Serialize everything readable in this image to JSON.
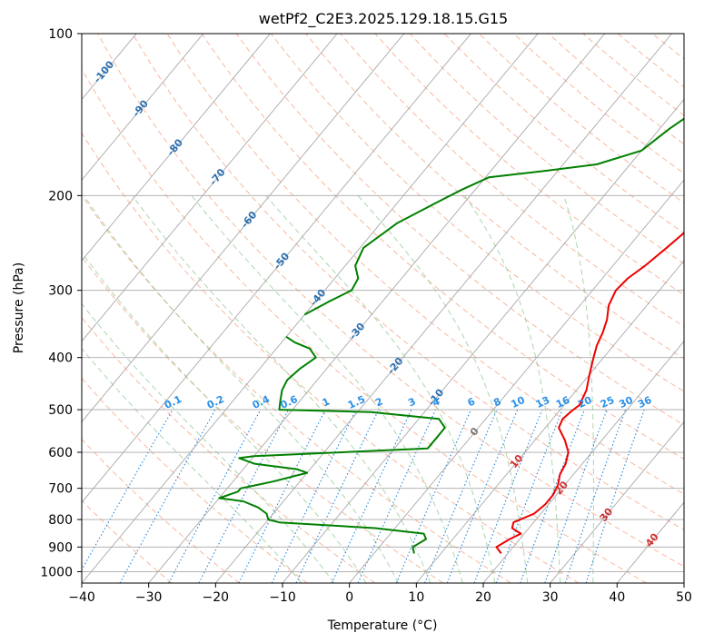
{
  "chart_data": {
    "type": "line",
    "subtype": "skew-t log-p",
    "title": "wetPf2_C2E3.2025.129.18.15.G15",
    "xlabel": "Temperature (°C)",
    "ylabel": "Pressure (hPa)",
    "xlim": [
      -40,
      50
    ],
    "ylim": [
      1050,
      100
    ],
    "y_scale": "log",
    "x_ticks": [
      "−40",
      "−30",
      "−20",
      "−10",
      "0",
      "10",
      "20",
      "30",
      "40",
      "50"
    ],
    "y_ticks": [
      "100",
      "200",
      "300",
      "400",
      "500",
      "600",
      "700",
      "800",
      "900",
      "1000"
    ],
    "grid": true,
    "colors": {
      "temperature": "#ee0000",
      "dewpoint": "#008000",
      "isotherms": "#a8a8a8",
      "dry_adiabats": "#f4a080",
      "moist_adiabats": "#90c890",
      "mixing_ratio": "#1f86e0",
      "labels_isotherm": "#2b6fb0",
      "labels_mixing": "#2a90e8",
      "labels_warm": "#d03030"
    },
    "isotherm_labels": [
      "-100",
      "-90",
      "-80",
      "-70",
      "-60",
      "-50",
      "-40",
      "-30",
      "-20",
      "-10",
      "0",
      "10",
      "20",
      "30",
      "40"
    ],
    "mixing_ratio_labels": [
      "0.1",
      "0.2",
      "0.4",
      "0.6",
      "1",
      "1.5",
      "2",
      "3",
      "4",
      "6",
      "8",
      "10",
      "13",
      "16",
      "20",
      "25",
      "30",
      "36"
    ],
    "series": [
      {
        "key": "temperature",
        "points": [
          [
            19.0,
            925
          ],
          [
            17.5,
            900
          ],
          [
            18.5,
            870
          ],
          [
            19.5,
            850
          ],
          [
            17.5,
            830
          ],
          [
            17.0,
            810
          ],
          [
            19.0,
            780
          ],
          [
            19.5,
            750
          ],
          [
            19.5,
            720
          ],
          [
            19.0,
            690
          ],
          [
            18.0,
            660
          ],
          [
            17.5,
            630
          ],
          [
            16.5,
            600
          ],
          [
            14.5,
            570
          ],
          [
            12.0,
            540
          ],
          [
            11.5,
            520
          ],
          [
            11.8,
            505
          ],
          [
            12.3,
            490
          ],
          [
            11.5,
            460
          ],
          [
            10.0,
            430
          ],
          [
            8.5,
            400
          ],
          [
            7.5,
            380
          ],
          [
            6.8,
            360
          ],
          [
            5.8,
            340
          ],
          [
            4.3,
            320
          ],
          [
            3.5,
            300
          ],
          [
            3.8,
            285
          ],
          [
            4.8,
            270
          ],
          [
            5.8,
            250
          ],
          [
            6.8,
            230
          ],
          [
            7.8,
            210
          ],
          [
            8.8,
            195
          ],
          [
            9.8,
            180
          ],
          [
            10.8,
            170
          ],
          [
            10.4,
            160
          ],
          [
            9.6,
            150
          ],
          [
            9.2,
            140
          ],
          [
            9.1,
            130
          ],
          [
            9.1,
            120
          ],
          [
            9.6,
            110
          ],
          [
            10.6,
            100
          ]
        ]
      },
      {
        "key": "dewpoint",
        "points": [
          [
            6.0,
            925
          ],
          [
            5.0,
            900
          ],
          [
            6.0,
            870
          ],
          [
            5.0,
            850
          ],
          [
            -3.0,
            830
          ],
          [
            -18.0,
            810
          ],
          [
            -20.0,
            800
          ],
          [
            -21.0,
            780
          ],
          [
            -23.0,
            760
          ],
          [
            -26.0,
            740
          ],
          [
            -30.0,
            730
          ],
          [
            -28.0,
            710
          ],
          [
            -28.0,
            700
          ],
          [
            -26.0,
            690
          ],
          [
            -24.0,
            680
          ],
          [
            -20.0,
            655
          ],
          [
            -22.0,
            645
          ],
          [
            -29.0,
            630
          ],
          [
            -32.0,
            615
          ],
          [
            -30.0,
            610
          ],
          [
            -5.0,
            590
          ],
          [
            -5.0,
            560
          ],
          [
            -5.0,
            540
          ],
          [
            -7.0,
            520
          ],
          [
            -18.0,
            505
          ],
          [
            -32.0,
            500
          ],
          [
            -33.0,
            480
          ],
          [
            -34.0,
            460
          ],
          [
            -34.5,
            440
          ],
          [
            -34.0,
            420
          ],
          [
            -33.0,
            400
          ],
          [
            -35.0,
            385
          ],
          [
            -38.0,
            375
          ],
          [
            -40.0,
            366
          ],
          null,
          [
            -40.0,
            333
          ],
          [
            -38.0,
            315
          ],
          [
            -36.0,
            300
          ],
          [
            -36.5,
            285
          ],
          [
            -38.5,
            270
          ],
          [
            -39.5,
            250
          ],
          [
            -37.5,
            225
          ],
          [
            -34.0,
            205
          ],
          [
            -32.0,
            195
          ],
          [
            -29.5,
            185
          ],
          [
            -22.0,
            180
          ],
          [
            -15.0,
            175
          ],
          [
            -10.0,
            165
          ],
          [
            -8.5,
            150
          ],
          [
            -7.0,
            140
          ],
          [
            -4.0,
            125
          ],
          [
            -1.0,
            112
          ],
          [
            1.0,
            105
          ],
          [
            2.0,
            100
          ]
        ]
      }
    ]
  }
}
